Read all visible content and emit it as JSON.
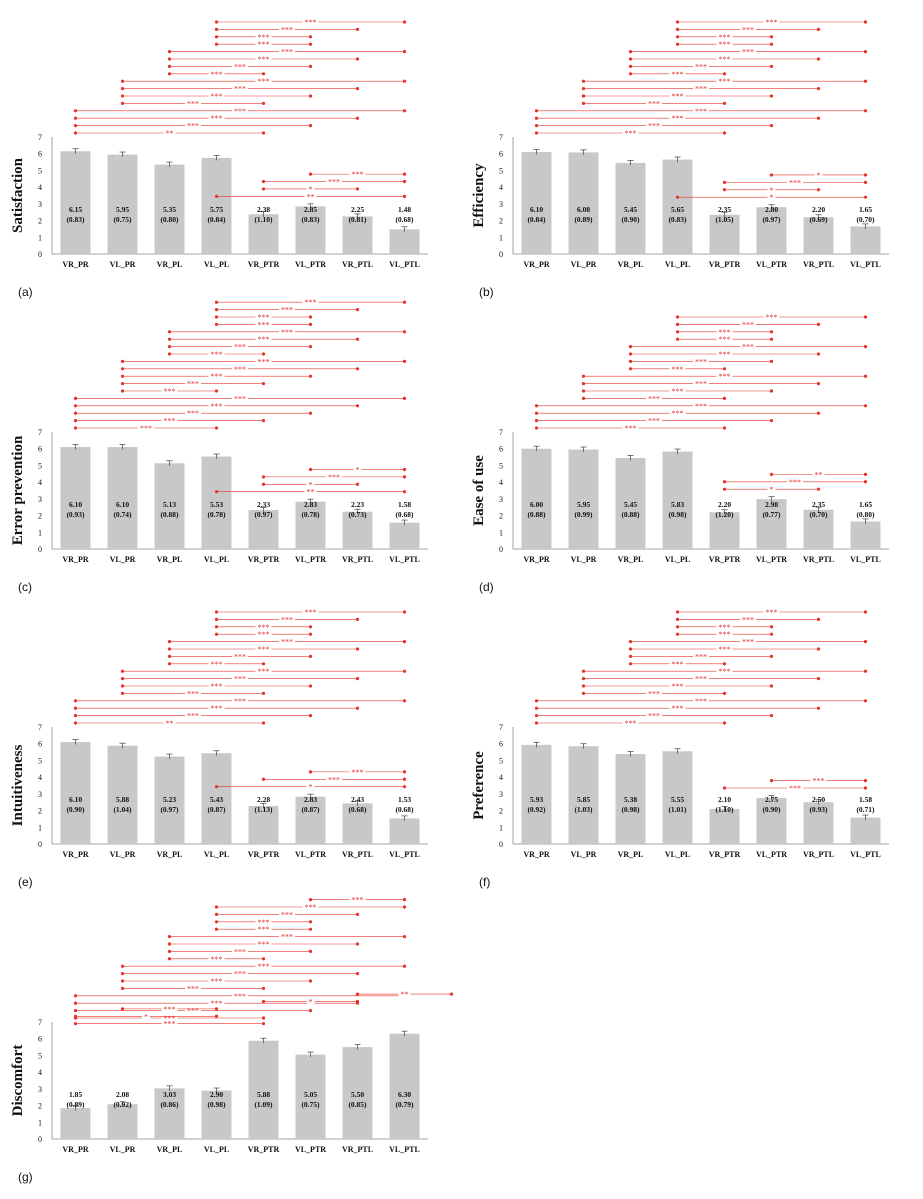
{
  "chart_data": [
    {
      "type": "bar",
      "panel_label": "(a)",
      "ylabel": "Satisfaction",
      "ylim": [
        0,
        7
      ],
      "yticks": [
        "0",
        "1",
        "2",
        "3",
        "4",
        "5",
        "6",
        "7"
      ],
      "categories": [
        "VR_PR",
        "VL_PR",
        "VR_PL",
        "VL_PL",
        "VR_PTR",
        "VL_PTR",
        "VR_PTL",
        "VL_PTL"
      ],
      "values": [
        6.15,
        5.95,
        5.35,
        5.75,
        2.38,
        2.85,
        2.25,
        1.48
      ],
      "value_labels": [
        "6.15",
        "5.95",
        "5.35",
        "5.75",
        "2.38",
        "2.85",
        "2.25",
        "1.48"
      ],
      "sd_labels": [
        "(0.83)",
        "(0.75)",
        "(0.80)",
        "(0.84)",
        "(1.10)",
        "(0.83)",
        "(0.81)",
        "(0.68)"
      ],
      "sig_top": [
        {
          "i": 4,
          "j": 7,
          "label": "***"
        },
        {
          "i": 4,
          "j": 6,
          "label": "***"
        },
        {
          "i": 4,
          "j": 5,
          "label": "***"
        },
        {
          "i": 4,
          "j": 5,
          "label": "***"
        },
        {
          "i": 3,
          "j": 7,
          "label": "***"
        },
        {
          "i": 3,
          "j": 6,
          "label": "***"
        },
        {
          "i": 3,
          "j": 5,
          "label": "***"
        },
        {
          "i": 3,
          "j": 4,
          "label": "***"
        },
        {
          "i": 2,
          "j": 7,
          "label": "***"
        },
        {
          "i": 2,
          "j": 6,
          "label": "***"
        },
        {
          "i": 2,
          "j": 5,
          "label": "***"
        },
        {
          "i": 2,
          "j": 4,
          "label": "***"
        },
        {
          "i": 1,
          "j": 7,
          "label": "***"
        },
        {
          "i": 1,
          "j": 6,
          "label": "***"
        },
        {
          "i": 1,
          "j": 5,
          "label": "***"
        },
        {
          "i": 1,
          "j": 4,
          "label": "**"
        }
      ],
      "sig_low": [
        {
          "i": 6,
          "j": 7,
          "label": "***"
        },
        {
          "i": 5,
          "j": 7,
          "label": "***"
        },
        {
          "i": 5,
          "j": 6,
          "label": "*"
        },
        {
          "i": 4,
          "j": 7,
          "label": "**"
        }
      ]
    },
    {
      "type": "bar",
      "panel_label": "(b)",
      "ylabel": "Efficiency",
      "ylim": [
        0,
        7
      ],
      "yticks": [
        "0",
        "1",
        "2",
        "3",
        "4",
        "5",
        "6",
        "7"
      ],
      "categories": [
        "VR_PR",
        "VL_PR",
        "VR_PL",
        "VL_PL",
        "VR_PTR",
        "VL_PTR",
        "VR_PTL",
        "VL_PTL"
      ],
      "values": [
        6.1,
        6.08,
        5.45,
        5.65,
        2.35,
        2.8,
        2.2,
        1.65
      ],
      "value_labels": [
        "6.10",
        "6.08",
        "5.45",
        "5.65",
        "2.35",
        "2.80",
        "2.20",
        "1.65"
      ],
      "sd_labels": [
        "(0.84)",
        "(0.89)",
        "(0.90)",
        "(0.83)",
        "(1.05)",
        "(0.97)",
        "(0.69)",
        "(0.70)"
      ],
      "sig_top": [
        {
          "i": 4,
          "j": 7,
          "label": "***"
        },
        {
          "i": 4,
          "j": 6,
          "label": "***"
        },
        {
          "i": 4,
          "j": 5,
          "label": "***"
        },
        {
          "i": 4,
          "j": 5,
          "label": "***"
        },
        {
          "i": 3,
          "j": 7,
          "label": "***"
        },
        {
          "i": 3,
          "j": 6,
          "label": "***"
        },
        {
          "i": 3,
          "j": 5,
          "label": "***"
        },
        {
          "i": 3,
          "j": 4,
          "label": "***"
        },
        {
          "i": 2,
          "j": 7,
          "label": "***"
        },
        {
          "i": 2,
          "j": 6,
          "label": "***"
        },
        {
          "i": 2,
          "j": 5,
          "label": "***"
        },
        {
          "i": 2,
          "j": 4,
          "label": "***"
        },
        {
          "i": 1,
          "j": 7,
          "label": "***"
        },
        {
          "i": 1,
          "j": 6,
          "label": "***"
        },
        {
          "i": 1,
          "j": 5,
          "label": "***"
        },
        {
          "i": 1,
          "j": 4,
          "label": "***"
        }
      ],
      "sig_low": [
        {
          "i": 6,
          "j": 7,
          "label": "*"
        },
        {
          "i": 5,
          "j": 7,
          "label": "***"
        },
        {
          "i": 5,
          "j": 6,
          "label": "*"
        },
        {
          "i": 4,
          "j": 7,
          "label": "*"
        }
      ]
    },
    {
      "type": "bar",
      "panel_label": "(c)",
      "ylabel": "Error prevention",
      "ylim": [
        0,
        7
      ],
      "yticks": [
        "0",
        "1",
        "2",
        "3",
        "4",
        "5",
        "6",
        "7"
      ],
      "categories": [
        "VR_PR",
        "VL_PR",
        "VR_PL",
        "VL_PL",
        "VR_PTR",
        "VL_PTR",
        "VR_PTL",
        "VL_PTL"
      ],
      "values": [
        6.1,
        6.1,
        5.13,
        5.53,
        2.33,
        2.83,
        2.23,
        1.58
      ],
      "value_labels": [
        "6.10",
        "6.10",
        "5.13",
        "5.53",
        "2.33",
        "2.83",
        "2.23",
        "1.58"
      ],
      "sd_labels": [
        "(0.93)",
        "(0.74)",
        "(0.88)",
        "(0.78)",
        "(0.97)",
        "(0.78)",
        "(0.73)",
        "(0.68)"
      ],
      "sig_top": [
        {
          "i": 4,
          "j": 7,
          "label": "***"
        },
        {
          "i": 4,
          "j": 6,
          "label": "***"
        },
        {
          "i": 4,
          "j": 5,
          "label": "***"
        },
        {
          "i": 4,
          "j": 5,
          "label": "***"
        },
        {
          "i": 3,
          "j": 7,
          "label": "***"
        },
        {
          "i": 3,
          "j": 6,
          "label": "***"
        },
        {
          "i": 3,
          "j": 5,
          "label": "***"
        },
        {
          "i": 3,
          "j": 4,
          "label": "***"
        },
        {
          "i": 2,
          "j": 7,
          "label": "***"
        },
        {
          "i": 2,
          "j": 6,
          "label": "***"
        },
        {
          "i": 2,
          "j": 5,
          "label": "***"
        },
        {
          "i": 2,
          "j": 4,
          "label": "***"
        },
        {
          "i": 2,
          "j": 3,
          "label": "***"
        },
        {
          "i": 1,
          "j": 7,
          "label": "***"
        },
        {
          "i": 1,
          "j": 6,
          "label": "***"
        },
        {
          "i": 1,
          "j": 5,
          "label": "***"
        },
        {
          "i": 1,
          "j": 4,
          "label": "***"
        },
        {
          "i": 1,
          "j": 3,
          "label": "***"
        }
      ],
      "sig_low": [
        {
          "i": 6,
          "j": 7,
          "label": "*"
        },
        {
          "i": 5,
          "j": 7,
          "label": "***"
        },
        {
          "i": 5,
          "j": 6,
          "label": "*"
        },
        {
          "i": 4,
          "j": 7,
          "label": "**"
        }
      ]
    },
    {
      "type": "bar",
      "panel_label": "(d)",
      "ylabel": "Ease of use",
      "ylim": [
        0,
        7
      ],
      "yticks": [
        "0",
        "1",
        "2",
        "3",
        "4",
        "5",
        "6",
        "7"
      ],
      "categories": [
        "VR_PR",
        "VL_PR",
        "VR_PL",
        "VL_PL",
        "VR_PTR",
        "VL_PTR",
        "VR_PTL",
        "VL_PTL"
      ],
      "values": [
        6.0,
        5.95,
        5.45,
        5.83,
        2.2,
        2.98,
        2.35,
        1.65
      ],
      "value_labels": [
        "6.00",
        "5.95",
        "5.45",
        "5.83",
        "2.20",
        "2.98",
        "2.35",
        "1.65"
      ],
      "sd_labels": [
        "(0.88)",
        "(0.99)",
        "(0.88)",
        "(0.98)",
        "(1.20)",
        "(0.77)",
        "(0.70)",
        "(0.80)"
      ],
      "sig_top": [
        {
          "i": 4,
          "j": 7,
          "label": "***"
        },
        {
          "i": 4,
          "j": 6,
          "label": "***"
        },
        {
          "i": 4,
          "j": 5,
          "label": "***"
        },
        {
          "i": 4,
          "j": 5,
          "label": "***"
        },
        {
          "i": 3,
          "j": 7,
          "label": "***"
        },
        {
          "i": 3,
          "j": 6,
          "label": "***"
        },
        {
          "i": 3,
          "j": 5,
          "label": "***"
        },
        {
          "i": 3,
          "j": 4,
          "label": "***"
        },
        {
          "i": 2,
          "j": 7,
          "label": "***"
        },
        {
          "i": 2,
          "j": 6,
          "label": "***"
        },
        {
          "i": 2,
          "j": 5,
          "label": "***"
        },
        {
          "i": 2,
          "j": 4,
          "label": "***"
        },
        {
          "i": 1,
          "j": 7,
          "label": "***"
        },
        {
          "i": 1,
          "j": 6,
          "label": "***"
        },
        {
          "i": 1,
          "j": 5,
          "label": "***"
        },
        {
          "i": 1,
          "j": 4,
          "label": "***"
        }
      ],
      "sig_low": [
        {
          "i": 6,
          "j": 7,
          "label": "**"
        },
        {
          "i": 5,
          "j": 7,
          "label": "***"
        },
        {
          "i": 5,
          "j": 6,
          "label": "*"
        }
      ]
    },
    {
      "type": "bar",
      "panel_label": "(e)",
      "ylabel": "Intuitiveness",
      "ylim": [
        0,
        7
      ],
      "yticks": [
        "0",
        "1",
        "2",
        "3",
        "4",
        "5",
        "6",
        "7"
      ],
      "categories": [
        "VR_PR",
        "VL_PR",
        "VR_PL",
        "VL_PL",
        "VR_PTR",
        "VL_PTR",
        "VR_PTL",
        "VL_PTL"
      ],
      "values": [
        6.1,
        5.88,
        5.23,
        5.43,
        2.28,
        2.83,
        2.43,
        1.53
      ],
      "value_labels": [
        "6.10",
        "5.88",
        "5.23",
        "5.43",
        "2.28",
        "2.83",
        "2.43",
        "1.53"
      ],
      "sd_labels": [
        "(0.90)",
        "(1.04)",
        "(0.97)",
        "(0.87)",
        "(1.13)",
        "(0.87)",
        "(0.68)",
        "(0.68)"
      ],
      "sig_top": [
        {
          "i": 4,
          "j": 7,
          "label": "***"
        },
        {
          "i": 4,
          "j": 6,
          "label": "***"
        },
        {
          "i": 4,
          "j": 5,
          "label": "***"
        },
        {
          "i": 4,
          "j": 5,
          "label": "***"
        },
        {
          "i": 3,
          "j": 7,
          "label": "***"
        },
        {
          "i": 3,
          "j": 6,
          "label": "***"
        },
        {
          "i": 3,
          "j": 5,
          "label": "***"
        },
        {
          "i": 3,
          "j": 4,
          "label": "***"
        },
        {
          "i": 2,
          "j": 7,
          "label": "***"
        },
        {
          "i": 2,
          "j": 6,
          "label": "***"
        },
        {
          "i": 2,
          "j": 5,
          "label": "***"
        },
        {
          "i": 2,
          "j": 4,
          "label": "***"
        },
        {
          "i": 1,
          "j": 7,
          "label": "***"
        },
        {
          "i": 1,
          "j": 6,
          "label": "***"
        },
        {
          "i": 1,
          "j": 5,
          "label": "***"
        },
        {
          "i": 1,
          "j": 4,
          "label": "**"
        }
      ],
      "sig_low": [
        {
          "i": 6,
          "j": 7,
          "label": "***"
        },
        {
          "i": 5,
          "j": 7,
          "label": "***"
        },
        {
          "i": 4,
          "j": 7,
          "label": "*"
        }
      ]
    },
    {
      "type": "bar",
      "panel_label": "(f)",
      "ylabel": "Preference",
      "ylim": [
        0,
        7
      ],
      "yticks": [
        "0",
        "1",
        "2",
        "3",
        "4",
        "5",
        "6",
        "7"
      ],
      "categories": [
        "VR_PR",
        "VL_PR",
        "VR_PL",
        "VL_PL",
        "VR_PTR",
        "VL_PTR",
        "VR_PTL",
        "VL_PTL"
      ],
      "values": [
        5.93,
        5.85,
        5.38,
        5.55,
        2.1,
        2.75,
        2.5,
        1.58
      ],
      "value_labels": [
        "5.93",
        "5.85",
        "5.38",
        "5.55",
        "2.10",
        "2.75",
        "2.50",
        "1.58"
      ],
      "sd_labels": [
        "(0.92)",
        "(1.03)",
        "(0.98)",
        "(1.01)",
        "(1.10)",
        "(0.90)",
        "(0.93)",
        "(0.71)"
      ],
      "sig_top": [
        {
          "i": 4,
          "j": 7,
          "label": "***"
        },
        {
          "i": 4,
          "j": 6,
          "label": "***"
        },
        {
          "i": 4,
          "j": 5,
          "label": "***"
        },
        {
          "i": 4,
          "j": 5,
          "label": "***"
        },
        {
          "i": 3,
          "j": 7,
          "label": "***"
        },
        {
          "i": 3,
          "j": 6,
          "label": "***"
        },
        {
          "i": 3,
          "j": 5,
          "label": "***"
        },
        {
          "i": 3,
          "j": 4,
          "label": "***"
        },
        {
          "i": 2,
          "j": 7,
          "label": "***"
        },
        {
          "i": 2,
          "j": 6,
          "label": "***"
        },
        {
          "i": 2,
          "j": 5,
          "label": "***"
        },
        {
          "i": 2,
          "j": 4,
          "label": "***"
        },
        {
          "i": 1,
          "j": 7,
          "label": "***"
        },
        {
          "i": 1,
          "j": 6,
          "label": "***"
        },
        {
          "i": 1,
          "j": 5,
          "label": "***"
        },
        {
          "i": 1,
          "j": 4,
          "label": "***"
        }
      ],
      "sig_low": [
        {
          "i": 6,
          "j": 7,
          "label": "***"
        },
        {
          "i": 5,
          "j": 7,
          "label": "***"
        }
      ]
    },
    {
      "type": "bar",
      "panel_label": "(g)",
      "ylabel": "Discomfort",
      "ylim": [
        0,
        7
      ],
      "yticks": [
        "0",
        "1",
        "2",
        "3",
        "4",
        "5",
        "6",
        "7"
      ],
      "categories": [
        "VR_PR",
        "VL_PR",
        "VR_PL",
        "VL_PL",
        "VR_PTR",
        "VL_PTR",
        "VR_PTL",
        "VL_PTL"
      ],
      "values": [
        1.85,
        2.08,
        3.03,
        2.9,
        5.88,
        5.05,
        5.5,
        6.3
      ],
      "value_labels": [
        "1.85",
        "2.08",
        "3.03",
        "2.90",
        "5.88",
        "5.05",
        "5.50",
        "6.30"
      ],
      "sd_labels": [
        "(0.89)",
        "(0.92)",
        "(0.86)",
        "(0.98)",
        "(1.09)",
        "(0.75)",
        "(0.85)",
        "(0.79)"
      ],
      "sig_top": [
        {
          "i": 6,
          "j": 7,
          "label": "***"
        },
        {
          "i": 4,
          "j": 7,
          "label": "***"
        },
        {
          "i": 4,
          "j": 6,
          "label": "***"
        },
        {
          "i": 4,
          "j": 5,
          "label": "***"
        },
        {
          "i": 4,
          "j": 5,
          "label": "***"
        },
        {
          "i": 3,
          "j": 7,
          "label": "***"
        },
        {
          "i": 3,
          "j": 6,
          "label": "***"
        },
        {
          "i": 3,
          "j": 5,
          "label": "***"
        },
        {
          "i": 3,
          "j": 4,
          "label": "***"
        },
        {
          "i": 2,
          "j": 7,
          "label": "***"
        },
        {
          "i": 2,
          "j": 6,
          "label": "***"
        },
        {
          "i": 2,
          "j": 5,
          "label": "***"
        },
        {
          "i": 2,
          "j": 4,
          "label": "***"
        },
        {
          "i": 1,
          "j": 7,
          "label": "***"
        },
        {
          "i": 1,
          "j": 6,
          "label": "***"
        },
        {
          "i": 1,
          "j": 5,
          "label": "***"
        },
        {
          "i": 1,
          "j": 4,
          "label": "***"
        }
      ],
      "sig_low": [
        {
          "i": 7,
          "j": 8,
          "label": "**"
        },
        {
          "i": 5,
          "j": 6,
          "label": "*"
        },
        {
          "i": 2,
          "j": 3,
          "label": "***"
        },
        {
          "i": 1,
          "j": 3,
          "label": "*"
        },
        {
          "i": 1,
          "j": 4,
          "label": "***"
        }
      ]
    }
  ]
}
